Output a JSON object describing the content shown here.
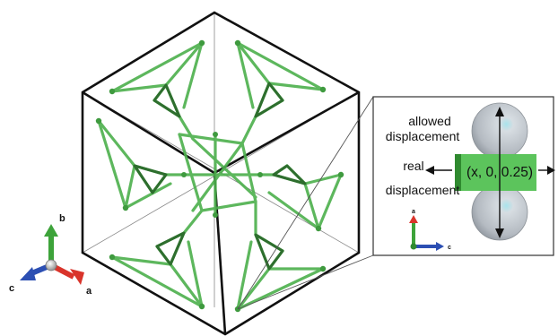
{
  "axes_triad": {
    "labels": {
      "a": "a",
      "b": "b",
      "c": "c"
    },
    "colors": {
      "a": "#d9342b",
      "b": "#3da33a",
      "c": "#2c4fb3",
      "origin": "#b3b3b3"
    }
  },
  "inset": {
    "allowed_label_line1": "allowed",
    "allowed_label_line2": "displacement",
    "real_label_line1": "real",
    "real_label_line2": "displacement",
    "position_label": "(x, 0, 0.25)",
    "mini_axes": {
      "a": "a",
      "c": "c"
    }
  },
  "colors": {
    "framework_green": "#4cb04c",
    "framework_dark": "#2e6e2e",
    "inset_green": "#5cc45c",
    "sphere": "#c9ced4",
    "outline": "#111111"
  }
}
